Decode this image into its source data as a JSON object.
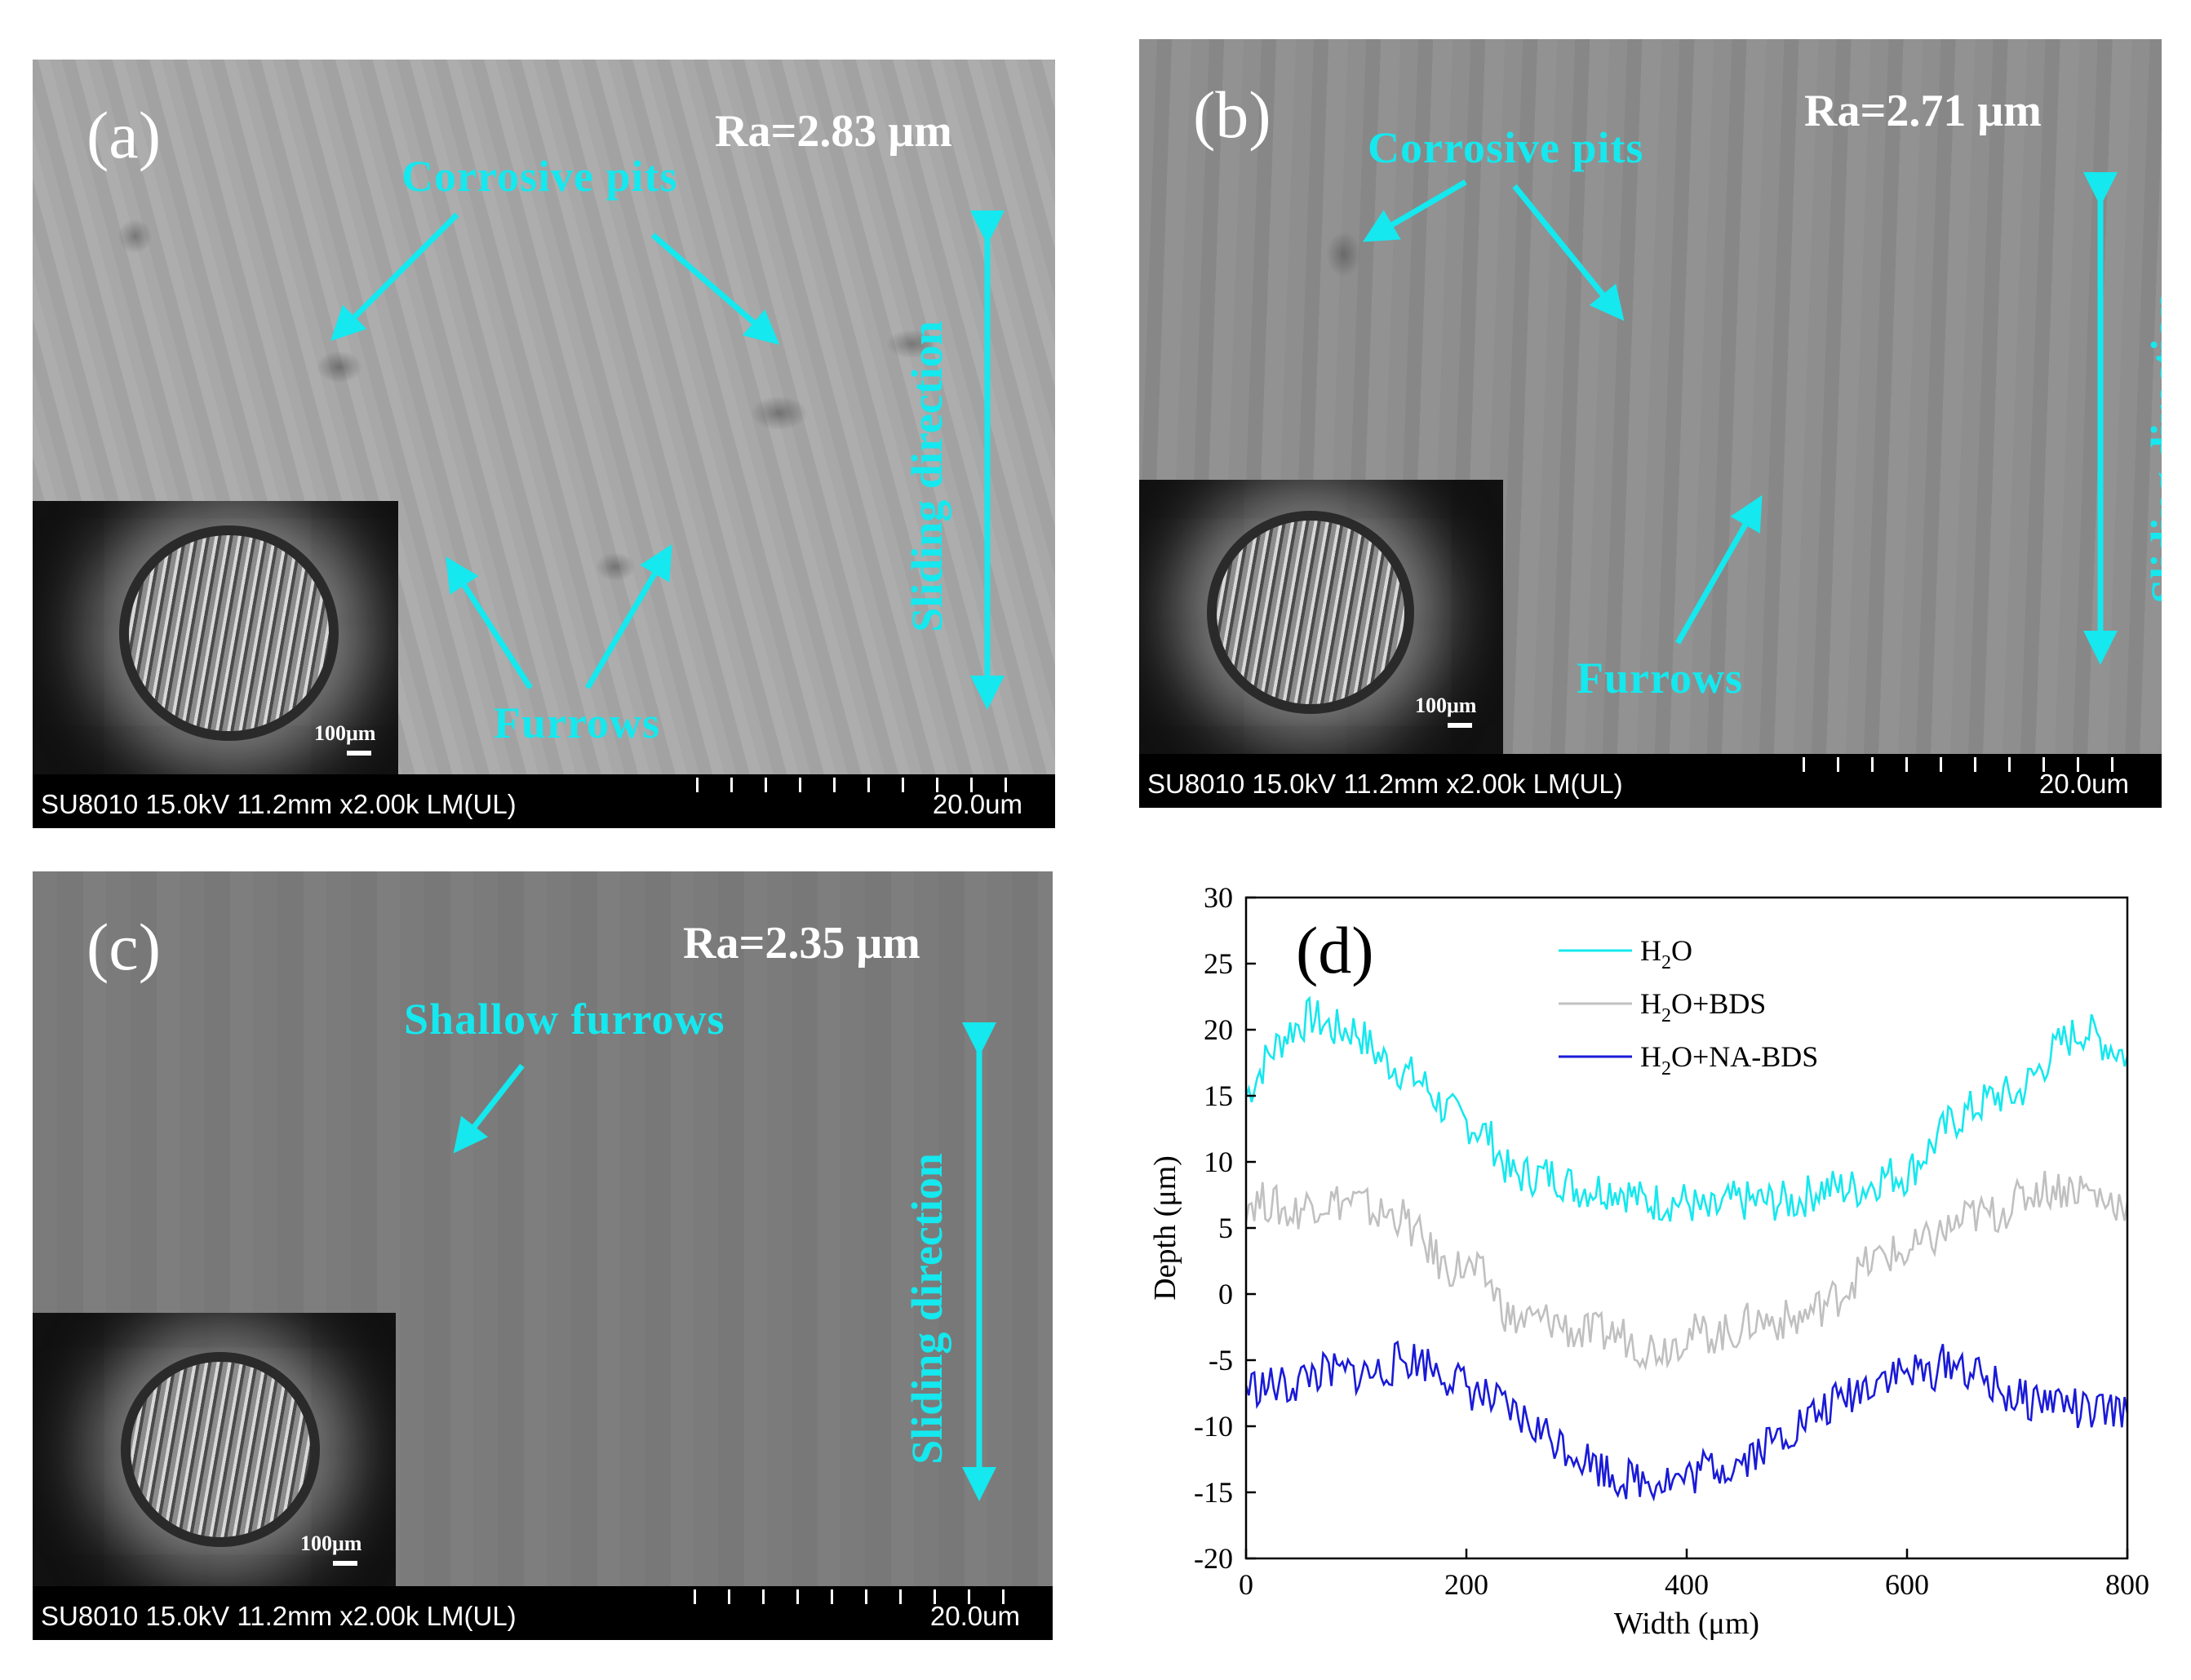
{
  "panels": {
    "a": {
      "label": "(a)",
      "ra": "Ra=2.83 μm",
      "annotation1": "Corrosive pits",
      "annotation2": "Furrows",
      "direction": "Sliding direction",
      "inset_scale": "100μm",
      "sem_meta": "SU8010 15.0kV 11.2mm x2.00k LM(UL)",
      "sem_scale": "20.0um"
    },
    "b": {
      "label": "(b)",
      "ra": "Ra=2.71 μm",
      "annotation1": "Corrosive pits",
      "annotation2": "Furrows",
      "direction": "Sliding direction",
      "inset_scale": "100μm",
      "sem_meta": "SU8010 15.0kV 11.2mm x2.00k LM(UL)",
      "sem_scale": "20.0um"
    },
    "c": {
      "label": "(c)",
      "ra": "Ra=2.35 μm",
      "annotation1": "Shallow furrows",
      "direction": "Sliding direction",
      "inset_scale": "100μm",
      "sem_meta": "SU8010 15.0kV 11.2mm x2.00k LM(UL)",
      "sem_scale": "20.0um"
    },
    "d": {
      "label": "(d)"
    }
  },
  "colors": {
    "annotation": "#15e8ee",
    "h2o": "#15e8ee",
    "bds": "#c0c0c0",
    "nabds": "#1a1ad8"
  },
  "chart_data": {
    "type": "line",
    "xlabel": "Width (μm)",
    "ylabel": "Depth (μm)",
    "xlim": [
      0,
      800
    ],
    "ylim": [
      -20,
      30
    ],
    "xticks": [
      0,
      200,
      400,
      600,
      800
    ],
    "yticks": [
      -20,
      -15,
      -10,
      -5,
      0,
      5,
      10,
      15,
      20,
      25,
      30
    ],
    "legend_position": "top-right",
    "series": [
      {
        "name": "H2O",
        "color": "#15e8ee",
        "x": [
          0,
          20,
          40,
          60,
          80,
          100,
          120,
          140,
          160,
          180,
          200,
          220,
          240,
          260,
          280,
          300,
          320,
          340,
          360,
          380,
          400,
          420,
          440,
          460,
          480,
          500,
          520,
          540,
          560,
          580,
          600,
          620,
          640,
          660,
          680,
          700,
          720,
          740,
          760,
          780,
          800
        ],
        "y": [
          15,
          18,
          20,
          21,
          20,
          20,
          18,
          17,
          16,
          14,
          13,
          12,
          9,
          9,
          9,
          8,
          8,
          8,
          7,
          7,
          7,
          6,
          7,
          7,
          7,
          7,
          8,
          8,
          8,
          9,
          9,
          11,
          13,
          14,
          15,
          15,
          17,
          19,
          20,
          19,
          18
        ]
      },
      {
        "name": "H2O+BDS",
        "color": "#c0c0c0",
        "x": [
          0,
          20,
          40,
          60,
          80,
          100,
          120,
          140,
          160,
          180,
          200,
          220,
          240,
          260,
          280,
          300,
          320,
          340,
          360,
          380,
          400,
          420,
          440,
          460,
          480,
          500,
          520,
          540,
          560,
          580,
          600,
          620,
          640,
          660,
          680,
          700,
          720,
          740,
          760,
          780,
          800
        ],
        "y": [
          7,
          7,
          6,
          7,
          7,
          7,
          6,
          6,
          4,
          2,
          2,
          1,
          -2,
          -2,
          -2,
          -3,
          -3,
          -3,
          -4,
          -4,
          -3,
          -3,
          -3,
          -2,
          -2,
          -2,
          -1,
          0,
          2,
          3,
          3,
          4,
          5,
          6,
          6,
          7,
          8,
          8,
          8,
          7,
          7
        ]
      },
      {
        "name": "H2O+NA-BDS",
        "color": "#1a1ad8",
        "x": [
          0,
          20,
          40,
          60,
          80,
          100,
          120,
          140,
          160,
          180,
          200,
          220,
          240,
          260,
          280,
          300,
          320,
          340,
          360,
          380,
          400,
          420,
          440,
          460,
          480,
          500,
          520,
          540,
          560,
          580,
          600,
          620,
          640,
          660,
          680,
          700,
          720,
          740,
          760,
          780,
          800
        ],
        "y": [
          -7,
          -7,
          -7,
          -6,
          -6,
          -6,
          -6,
          -5,
          -5,
          -6,
          -7,
          -8,
          -9,
          -10,
          -11,
          -12,
          -13,
          -14,
          -14,
          -14,
          -14,
          -13,
          -13,
          -12,
          -11,
          -10,
          -9,
          -8,
          -7,
          -6,
          -6,
          -6,
          -5,
          -6,
          -7,
          -8,
          -8,
          -8,
          -9,
          -9,
          -9
        ]
      }
    ]
  },
  "legend_labels": {
    "h2o_main": "H",
    "h2o_sub": "2",
    "h2o_rest": "O",
    "bds_main": "H",
    "bds_sub": "2",
    "bds_rest": "O+BDS",
    "nabds_main": "H",
    "nabds_sub": "2",
    "nabds_rest": "O+NA-BDS"
  }
}
